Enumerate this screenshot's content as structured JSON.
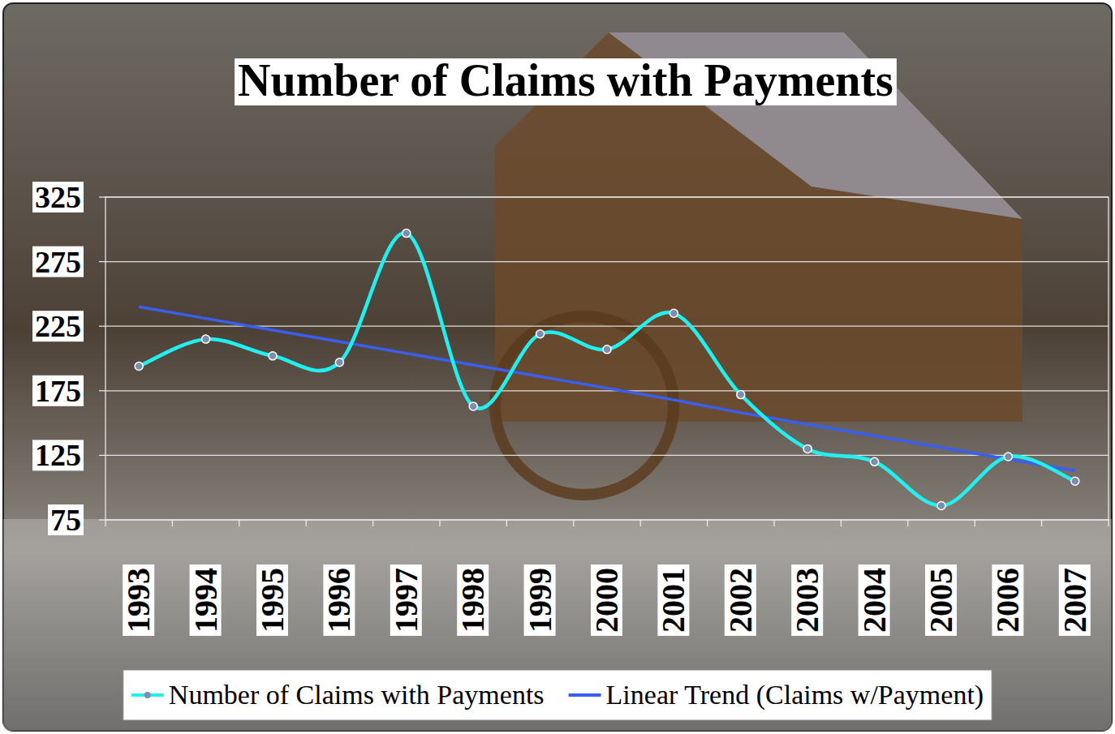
{
  "chart_data": {
    "type": "line",
    "title": "Number of Claims with Payments",
    "categories": [
      "1993",
      "1994",
      "1995",
      "1996",
      "1997",
      "1998",
      "1999",
      "2000",
      "2001",
      "2002",
      "2003",
      "2004",
      "2005",
      "2006",
      "2007"
    ],
    "series": [
      {
        "name": "Number of Claims with Payments",
        "color": "#22f0f0",
        "marker": "circle",
        "line_style": "smooth",
        "values": [
          194,
          215,
          202,
          197,
          297,
          163,
          219,
          207,
          235,
          172,
          130,
          120,
          86,
          124,
          105
        ]
      },
      {
        "name": "Linear Trend (Claims w/Payment)",
        "color": "#3a5ff0",
        "marker": "none",
        "line_style": "solid",
        "values": [
          240,
          231,
          222,
          213,
          204,
          195,
          186,
          177,
          168,
          158,
          149,
          140,
          131,
          122,
          113
        ]
      }
    ],
    "ylim": [
      75,
      325
    ],
    "yticks": [
      75,
      125,
      175,
      225,
      275,
      325
    ],
    "grid": true,
    "legend": "bottom"
  }
}
